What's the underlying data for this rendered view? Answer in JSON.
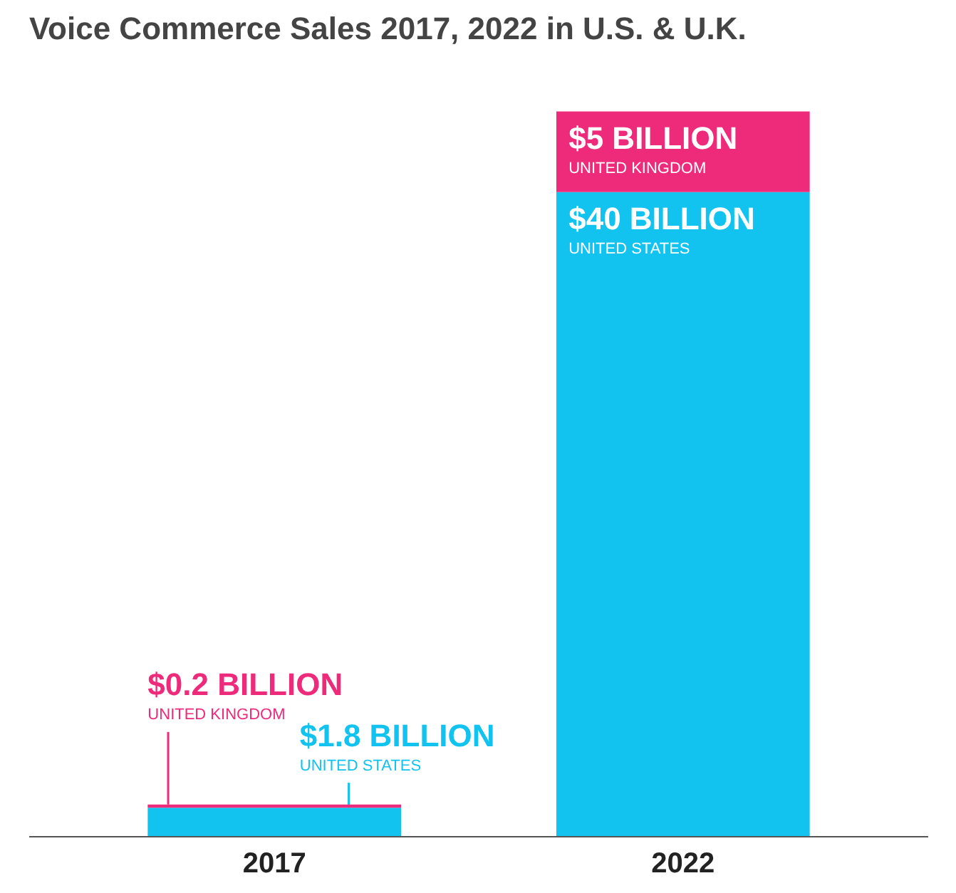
{
  "chart_data": {
    "type": "bar",
    "title": "Voice Commerce Sales 2017, 2022 in U.S. & U.K.",
    "categories": [
      "2017",
      "2022"
    ],
    "stacked": true,
    "grid": false,
    "tick_labels": "x",
    "series": [
      {
        "name": "UNITED STATES",
        "color": "#12c3ef",
        "values": [
          1.8,
          40
        ],
        "value_labels": [
          "$1.8 BILLION",
          "$40 BILLION"
        ]
      },
      {
        "name": "UNITED KINGDOM",
        "color": "#ee2a7b",
        "values": [
          0.2,
          5
        ],
        "value_labels": [
          "$0.2 BILLION",
          "$5 BILLION"
        ]
      }
    ]
  }
}
